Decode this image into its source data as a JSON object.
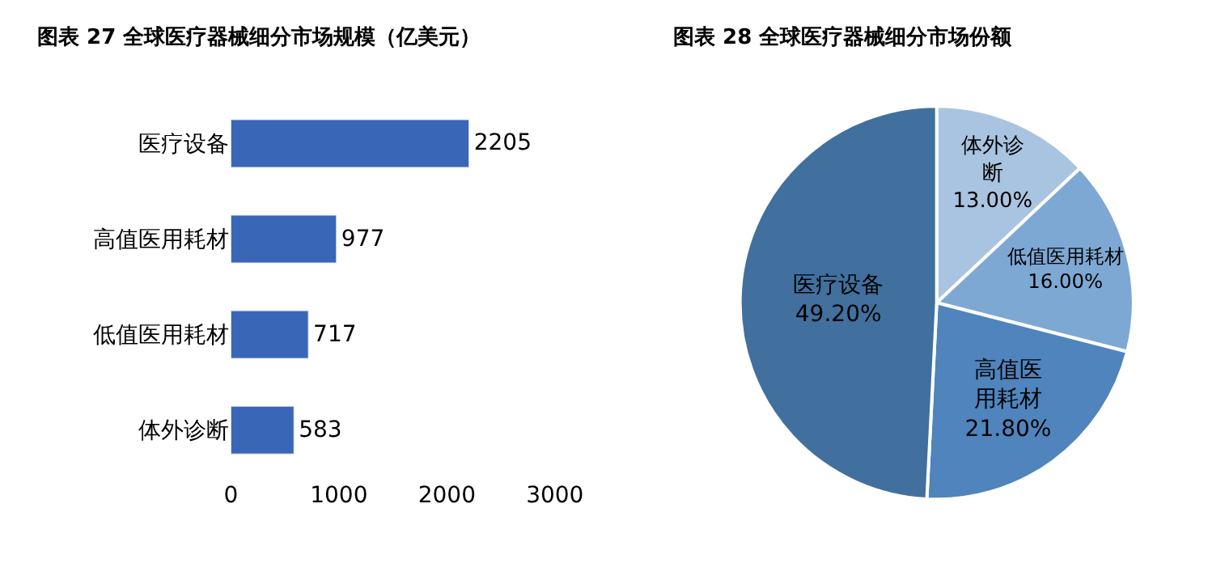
{
  "chart_data": [
    {
      "type": "bar",
      "title": "图表 27 全球医疗器械细分市场规模（亿美元）",
      "orientation": "horizontal",
      "categories": [
        "医疗设备",
        "高值医用耗材",
        "低值医用耗材",
        "体外诊断"
      ],
      "values": [
        2205,
        977,
        717,
        583
      ],
      "color": "#3a66b8",
      "xlim": [
        0,
        3000
      ],
      "xticks": [
        0,
        1000,
        2000,
        3000
      ],
      "data_labels": true
    },
    {
      "type": "pie",
      "title": "图表 28 全球医疗器械细分市场份额",
      "categories": [
        "体外诊断",
        "低值医用耗材",
        "高值医用耗材",
        "医疗设备"
      ],
      "values": [
        13.0,
        16.0,
        21.8,
        49.2
      ],
      "value_labels": [
        "13.00%",
        "16.00%",
        "21.80%",
        "49.20%"
      ],
      "colors": [
        "#a9c4e0",
        "#7ea8d4",
        "#4f84bd",
        "#41709f"
      ]
    }
  ]
}
